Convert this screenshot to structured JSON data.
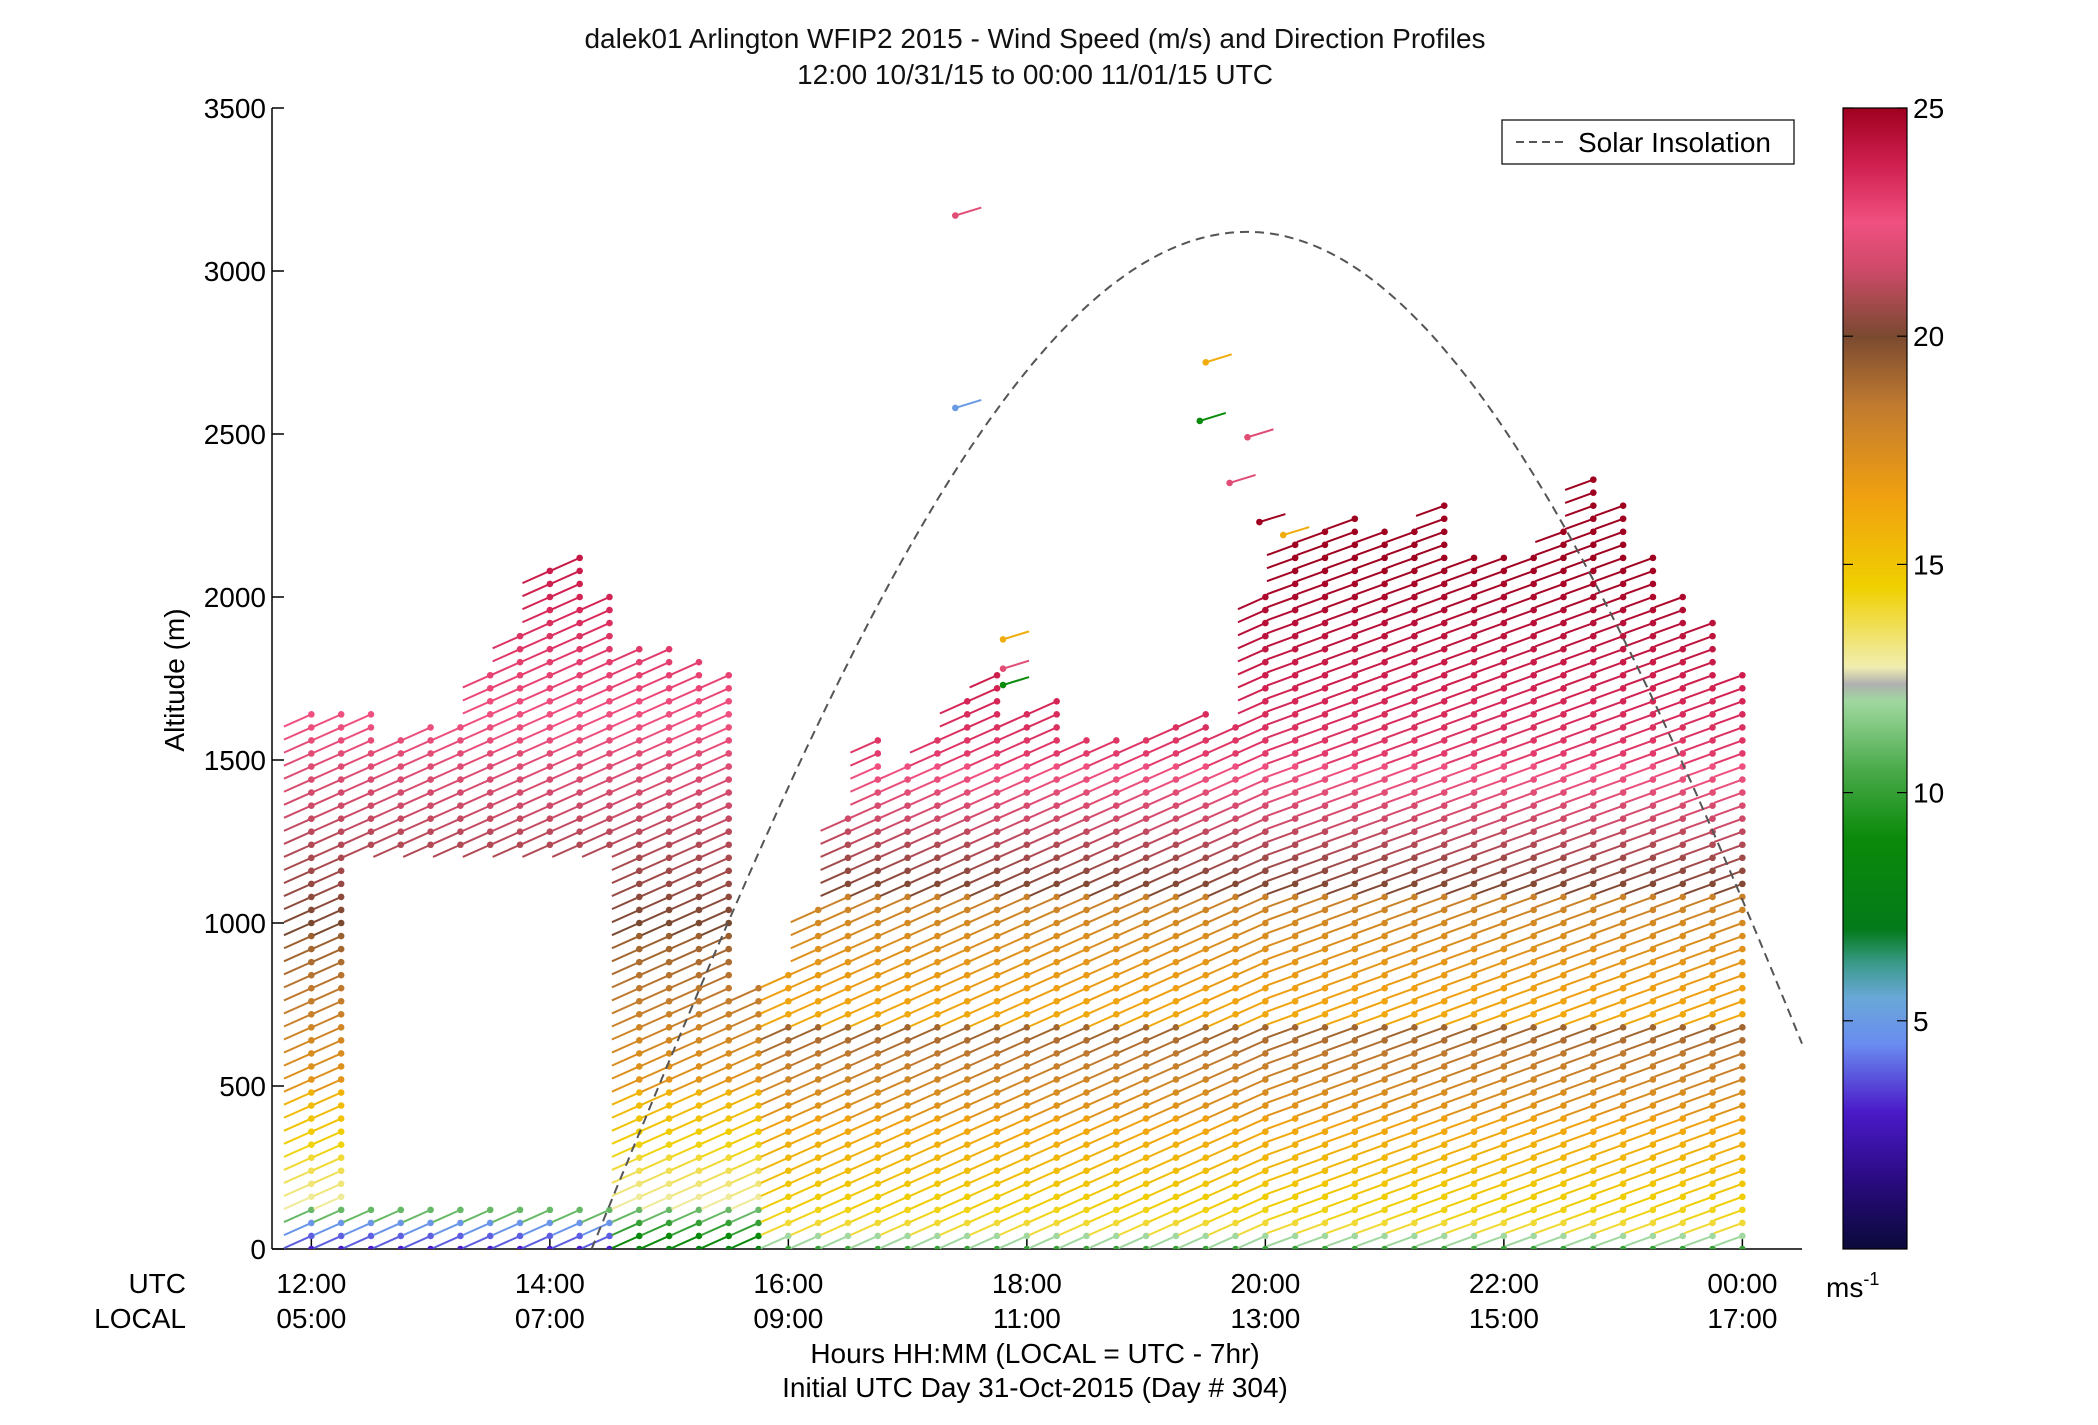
{
  "chart_data": {
    "type": "scatter",
    "title": "dalek01 Arlington WFIP2 2015 - Wind Speed (m/s) and Direction Profiles",
    "subtitle": "12:00 10/31/15 to 00:00 11/01/15  UTC",
    "ylabel": "Altitude (m)",
    "xlabel_line1": "Hours HH:MM  (LOCAL = UTC - 7hr)",
    "xlabel_line2": "Initial UTC Day 31-Oct-2015 (Day # 304)",
    "row_label_utc": "UTC",
    "row_label_local": "LOCAL",
    "ylim": [
      0,
      3500
    ],
    "xlim_hours": [
      11.67,
      24.5
    ],
    "yticks": [
      "0",
      "500",
      "1000",
      "1500",
      "2000",
      "2500",
      "3000",
      "3500"
    ],
    "xticks_utc": [
      "12:00",
      "14:00",
      "16:00",
      "18:00",
      "20:00",
      "22:00",
      "00:00"
    ],
    "xticks_local": [
      "05:00",
      "07:00",
      "09:00",
      "11:00",
      "13:00",
      "15:00",
      "17:00"
    ],
    "colorbar": {
      "label": "ms-1",
      "label_main": "ms",
      "label_sup": "-1",
      "min": 0,
      "max": 25,
      "ticks": [
        "5",
        "10",
        "15",
        "20",
        "25"
      ]
    },
    "legend": {
      "entries": [
        "Solar Insolation"
      ],
      "placement": "top-right"
    },
    "solar_insolation": {
      "style": "dashed gray",
      "start_hour": 14.35,
      "peak_hour": 19.85,
      "peak_altitude": 3120,
      "end_hour": 24.5,
      "end_altitude": 630
    },
    "profiles": [
      {
        "t": 12.0,
        "top": 1650,
        "low_wind": true
      },
      {
        "t": 12.25,
        "top": 1660,
        "low_wind": true
      },
      {
        "t": 12.5,
        "top": 1650,
        "low_wind": true
      },
      {
        "t": 12.75,
        "top": 1580,
        "low_wind": true
      },
      {
        "t": 13.0,
        "top": 1620,
        "low_wind": true
      },
      {
        "t": 13.25,
        "top": 1620,
        "low_wind": true
      },
      {
        "t": 13.5,
        "top": 1780,
        "low_wind": true
      },
      {
        "t": 13.75,
        "top": 1900,
        "low_wind": true
      },
      {
        "t": 14.0,
        "top": 2080,
        "low_wind": true
      },
      {
        "t": 14.25,
        "top": 2130,
        "low_wind": true
      },
      {
        "t": 14.5,
        "top": 2010,
        "low_wind": true
      },
      {
        "t": 14.75,
        "top": 1870,
        "low_wind": false
      },
      {
        "t": 15.0,
        "top": 1840,
        "low_wind": false
      },
      {
        "t": 15.25,
        "top": 1830,
        "low_wind": false
      },
      {
        "t": 15.5,
        "top": 1780,
        "low_wind": false
      },
      {
        "t": 15.75,
        "top": 820,
        "low_wind": false
      },
      {
        "t": 16.0,
        "top": 870,
        "low_wind": false
      },
      {
        "t": 16.25,
        "top": 1070,
        "low_wind": false
      },
      {
        "t": 16.5,
        "top": 1320,
        "low_wind": false
      },
      {
        "t": 16.75,
        "top": 1560,
        "low_wind": false
      },
      {
        "t": 17.0,
        "top": 1480,
        "low_wind": false
      },
      {
        "t": 17.25,
        "top": 1580,
        "low_wind": false
      },
      {
        "t": 17.5,
        "top": 1700,
        "low_wind": false
      },
      {
        "t": 17.75,
        "top": 1780,
        "low_wind": false
      },
      {
        "t": 18.0,
        "top": 1640,
        "low_wind": false
      },
      {
        "t": 18.25,
        "top": 1700,
        "low_wind": false
      },
      {
        "t": 18.5,
        "top": 1570,
        "low_wind": false
      },
      {
        "t": 18.75,
        "top": 1570,
        "low_wind": false
      },
      {
        "t": 19.0,
        "top": 1580,
        "low_wind": false
      },
      {
        "t": 19.25,
        "top": 1620,
        "low_wind": false
      },
      {
        "t": 19.5,
        "top": 1660,
        "low_wind": false
      },
      {
        "t": 19.75,
        "top": 1600,
        "low_wind": false
      },
      {
        "t": 20.0,
        "top": 2030,
        "low_wind": false
      },
      {
        "t": 20.25,
        "top": 2180,
        "low_wind": false
      },
      {
        "t": 20.5,
        "top": 2210,
        "low_wind": false
      },
      {
        "t": 20.75,
        "top": 2250,
        "low_wind": false
      },
      {
        "t": 21.0,
        "top": 2230,
        "low_wind": false
      },
      {
        "t": 21.25,
        "top": 2200,
        "low_wind": false
      },
      {
        "t": 21.5,
        "top": 2300,
        "low_wind": false
      },
      {
        "t": 21.75,
        "top": 2130,
        "low_wind": false
      },
      {
        "t": 22.0,
        "top": 2130,
        "low_wind": false
      },
      {
        "t": 22.25,
        "top": 2120,
        "low_wind": false
      },
      {
        "t": 22.5,
        "top": 2210,
        "low_wind": false
      },
      {
        "t": 22.75,
        "top": 2390,
        "low_wind": false
      },
      {
        "t": 23.0,
        "top": 2300,
        "low_wind": false
      },
      {
        "t": 23.25,
        "top": 2140,
        "low_wind": false
      },
      {
        "t": 23.5,
        "top": 2010,
        "low_wind": false
      },
      {
        "t": 23.75,
        "top": 1950,
        "low_wind": false
      },
      {
        "t": 24.0,
        "top": 1780,
        "low_wind": false
      }
    ],
    "isolated_points": [
      {
        "t": 17.4,
        "alt": 3170,
        "speed": 22
      },
      {
        "t": 17.4,
        "alt": 2580,
        "speed": 5
      },
      {
        "t": 19.5,
        "alt": 2720,
        "speed": 16
      },
      {
        "t": 19.45,
        "alt": 2540,
        "speed": 9
      },
      {
        "t": 19.85,
        "alt": 2490,
        "speed": 22
      },
      {
        "t": 19.7,
        "alt": 2350,
        "speed": 22
      },
      {
        "t": 19.95,
        "alt": 2230,
        "speed": 25
      },
      {
        "t": 20.15,
        "alt": 2190,
        "speed": 16
      },
      {
        "t": 17.8,
        "alt": 1870,
        "speed": 16
      },
      {
        "t": 17.8,
        "alt": 1780,
        "speed": 22
      },
      {
        "t": 17.8,
        "alt": 1730,
        "speed": 9
      }
    ]
  }
}
